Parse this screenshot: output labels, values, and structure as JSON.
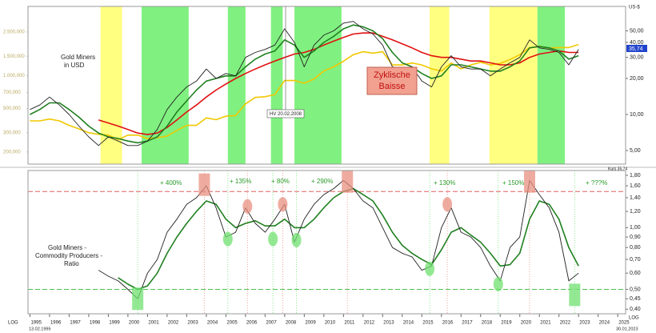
{
  "chart_data": [
    {
      "type": "line",
      "title_lines": [
        "Gold Miners",
        "in USD"
      ],
      "currency": "US-$",
      "callout_lines": [
        "Zyklische",
        "Baisse"
      ],
      "event_label": "HV 20.02.2008",
      "price_label": "Kurs 35,74",
      "price_tag": "35,74",
      "yscale": "log",
      "xlim": [
        1994.9,
        2025.4
      ],
      "ylim": [
        3.85,
        80
      ],
      "yticks": [
        {
          "value": 50,
          "label": "50,00"
        },
        {
          "value": 40,
          "label": "40,00"
        },
        {
          "value": 30,
          "label": "30,00"
        },
        {
          "value": 20,
          "label": "20,00"
        },
        {
          "value": 10,
          "label": "10,00"
        },
        {
          "value": 5,
          "label": "5,00"
        }
      ],
      "y2lim": [
        155,
        4280
      ],
      "y2ticks": [
        {
          "value": 2500,
          "label": "2.500,000"
        },
        {
          "value": 1500,
          "label": "1.500,000"
        },
        {
          "value": 1000,
          "label": "1.000,000"
        },
        {
          "value": 700,
          "label": "700,000"
        },
        {
          "value": 500,
          "label": "500,000"
        },
        {
          "value": 300,
          "label": "300,000"
        },
        {
          "value": 200,
          "label": "200,000"
        }
      ],
      "bands": [
        {
          "start": 1998.6,
          "end": 1999.7,
          "color": "#ffff80"
        },
        {
          "start": 2000.7,
          "end": 2003.1,
          "color": "#80f080"
        },
        {
          "start": 2005.1,
          "end": 2006.0,
          "color": "#80f080"
        },
        {
          "start": 2007.3,
          "end": 2007.9,
          "color": "#80f080"
        },
        {
          "start": 2008.5,
          "end": 2010.9,
          "color": "#80f080"
        },
        {
          "start": 2015.4,
          "end": 2016.4,
          "color": "#ffff80"
        },
        {
          "start": 2018.45,
          "end": 2020.9,
          "color": "#ffff80"
        },
        {
          "start": 2020.9,
          "end": 2022.3,
          "color": "#80f080"
        }
      ],
      "x": [
        1995,
        1995.5,
        1996,
        1996.5,
        1997,
        1997.5,
        1998,
        1998.5,
        1999,
        1999.5,
        2000,
        2000.5,
        2001,
        2001.5,
        2002,
        2002.5,
        2003,
        2003.5,
        2004,
        2004.5,
        2005,
        2005.5,
        2006,
        2006.5,
        2007,
        2007.5,
        2008,
        2008.5,
        2009,
        2009.5,
        2010,
        2010.5,
        2011,
        2011.5,
        2012,
        2012.5,
        2013,
        2013.5,
        2014,
        2014.5,
        2015,
        2015.5,
        2016,
        2016.5,
        2017,
        2017.5,
        2018,
        2018.5,
        2019,
        2019.5,
        2020,
        2020.5,
        2021,
        2021.5,
        2022,
        2022.5,
        2023
      ],
      "series": [
        {
          "color": "#f0c800",
          "axis": "y2",
          "values": [
            385,
            385,
            400,
            385,
            350,
            325,
            300,
            290,
            285,
            260,
            285,
            285,
            265,
            270,
            280,
            315,
            350,
            350,
            410,
            395,
            425,
            430,
            550,
            630,
            640,
            670,
            900,
            900,
            850,
            930,
            1100,
            1200,
            1350,
            1550,
            1650,
            1600,
            1650,
            1250,
            1250,
            1300,
            1250,
            1150,
            1100,
            1300,
            1150,
            1250,
            1320,
            1250,
            1290,
            1400,
            1550,
            1800,
            1850,
            1780,
            1800,
            1800,
            1920
          ]
        },
        {
          "color": "#e01010",
          "values": [
            null,
            null,
            null,
            null,
            null,
            null,
            null,
            9,
            8.5,
            8,
            7.5,
            7,
            6.8,
            7,
            7.8,
            9,
            10.5,
            12,
            14,
            16,
            18,
            20,
            22,
            24,
            26,
            28,
            30,
            32,
            33,
            35,
            38,
            41,
            44,
            47,
            48,
            48,
            45,
            42,
            39,
            36,
            33,
            31,
            30,
            30,
            29,
            28,
            28,
            27,
            26,
            26,
            27,
            30,
            32,
            33,
            34,
            33,
            33
          ]
        },
        {
          "color": "#208020",
          "values": [
            10,
            11,
            12.5,
            12.5,
            11,
            9.5,
            8,
            7,
            6.5,
            6.3,
            6,
            5.8,
            6,
            6.5,
            8,
            10.5,
            13,
            16,
            19,
            20,
            21,
            21,
            25,
            29,
            32,
            34,
            42,
            38,
            30,
            34,
            40,
            45,
            52,
            56,
            54,
            50,
            43,
            33,
            27,
            25,
            22,
            20,
            21,
            26,
            26,
            25,
            24,
            23,
            23,
            25,
            28,
            36,
            37,
            36,
            34,
            29,
            31
          ]
        },
        {
          "color": "#202020",
          "values": [
            11,
            12,
            14,
            12,
            10,
            8,
            6.5,
            5.5,
            6.5,
            6,
            5.5,
            5.5,
            6,
            7.5,
            11,
            14,
            17,
            19,
            24,
            20,
            22,
            21,
            30,
            33,
            35,
            38,
            52,
            40,
            25,
            38,
            46,
            50,
            58,
            60,
            52,
            47,
            38,
            25,
            24,
            25,
            19,
            17,
            25,
            31,
            25,
            24,
            24,
            21,
            24,
            27,
            30,
            42,
            36,
            35,
            33,
            26,
            35
          ]
        }
      ]
    },
    {
      "type": "line",
      "title_lines": [
        "Gold Miners -",
        "Commodity Producers -",
        "Ratio"
      ],
      "gains": [
        "+ 400%",
        "+ 135%",
        "+ 80%",
        "+ 290%",
        "+ 130%",
        "+ 150%",
        "+ ???%"
      ],
      "scale_note": "LOG",
      "start_date": "13.02.1995",
      "end_date": "30.01.2023",
      "yscale": "log",
      "xlim": [
        1994.9,
        2025.4
      ],
      "ylim": [
        0.38,
        1.9
      ],
      "yticks": [
        {
          "value": 1.8,
          "label": "1,80"
        },
        {
          "value": 1.6,
          "label": "1,60"
        },
        {
          "value": 1.4,
          "label": "1,40"
        },
        {
          "value": 1.2,
          "label": "1,20"
        },
        {
          "value": 1,
          "label": "1,00"
        },
        {
          "value": 0.9,
          "label": "0,90"
        },
        {
          "value": 0.8,
          "label": "0,80"
        },
        {
          "value": 0.7,
          "label": "0,70"
        },
        {
          "value": 0.6,
          "label": "0,60"
        },
        {
          "value": 0.5,
          "label": "0,50"
        },
        {
          "value": 0.45,
          "label": "0,45"
        },
        {
          "value": 0.4,
          "label": "0,40"
        }
      ],
      "xticks": [
        1995,
        1996,
        1997,
        1998,
        1999,
        2000,
        2001,
        2002,
        2003,
        2004,
        2005,
        2006,
        2007,
        2008,
        2009,
        2010,
        2011,
        2012,
        2013,
        2014,
        2015,
        2016,
        2017,
        2018,
        2019,
        2020,
        2021,
        2022,
        2023,
        2024,
        2025
      ],
      "hlines": [
        {
          "y": 1.5,
          "color": "#e06060"
        },
        {
          "y": 0.5,
          "color": "#50c050"
        }
      ],
      "markers": [
        {
          "x": 2000.5,
          "y": 0.45,
          "shape": "box",
          "color": "#70e070"
        },
        {
          "x": 2003.9,
          "y": 1.62,
          "shape": "box",
          "color": "#e89080"
        },
        {
          "x": 2005.1,
          "y": 0.88,
          "shape": "ellipse",
          "color": "#70e070"
        },
        {
          "x": 2006.1,
          "y": 1.27,
          "shape": "ellipse",
          "color": "#e89080"
        },
        {
          "x": 2007.4,
          "y": 0.88,
          "shape": "ellipse",
          "color": "#70e070"
        },
        {
          "x": 2007.9,
          "y": 1.3,
          "shape": "ellipse",
          "color": "#e89080"
        },
        {
          "x": 2008.6,
          "y": 0.87,
          "shape": "ellipse",
          "color": "#70e070"
        },
        {
          "x": 2011.2,
          "y": 1.68,
          "shape": "box",
          "color": "#e89080"
        },
        {
          "x": 2015.4,
          "y": 0.63,
          "shape": "ellipse",
          "color": "#70e070"
        },
        {
          "x": 2016.3,
          "y": 1.3,
          "shape": "ellipse",
          "color": "#e89080"
        },
        {
          "x": 2018.9,
          "y": 0.53,
          "shape": "ellipse",
          "color": "#70e070"
        },
        {
          "x": 2020.5,
          "y": 1.68,
          "shape": "box",
          "color": "#e89080"
        },
        {
          "x": 2022.8,
          "y": 0.47,
          "shape": "box",
          "color": "#70e070"
        }
      ],
      "x": [
        1995,
        1995.5,
        1996,
        1996.5,
        1997,
        1997.5,
        1998,
        1998.5,
        1999,
        1999.5,
        2000,
        2000.5,
        2001,
        2001.5,
        2002,
        2002.5,
        2003,
        2003.5,
        2004,
        2004.5,
        2005,
        2005.5,
        2006,
        2006.5,
        2007,
        2007.5,
        2008,
        2008.5,
        2009,
        2009.5,
        2010,
        2010.5,
        2011,
        2011.5,
        2012,
        2012.5,
        2013,
        2013.5,
        2014,
        2014.5,
        2015,
        2015.5,
        2016,
        2016.5,
        2017,
        2017.5,
        2018,
        2018.5,
        2019,
        2019.5,
        2020,
        2020.5,
        2021,
        2021.5,
        2022,
        2022.5,
        2023
      ],
      "series": [
        {
          "color": "#208020",
          "values": [
            null,
            null,
            null,
            null,
            null,
            null,
            null,
            null,
            null,
            0.57,
            0.53,
            0.5,
            0.52,
            0.6,
            0.75,
            0.9,
            1.05,
            1.2,
            1.35,
            1.3,
            1.1,
            1.0,
            1.05,
            1.08,
            1.02,
            1.02,
            1.1,
            1.0,
            1.0,
            1.1,
            1.25,
            1.4,
            1.5,
            1.55,
            1.45,
            1.35,
            1.15,
            0.95,
            0.82,
            0.75,
            0.7,
            0.66,
            0.78,
            0.95,
            1.0,
            0.92,
            0.85,
            0.75,
            0.65,
            0.66,
            0.75,
            1.1,
            1.35,
            1.3,
            1.1,
            0.8,
            0.65
          ]
        },
        {
          "color": "#202020",
          "values": [
            null,
            null,
            null,
            null,
            null,
            null,
            null,
            0.62,
            0.58,
            0.55,
            0.5,
            0.45,
            0.6,
            0.7,
            0.95,
            1.1,
            1.3,
            1.4,
            1.6,
            1.25,
            0.9,
            0.95,
            1.25,
            1.05,
            0.95,
            1.1,
            1.3,
            0.85,
            1.1,
            1.3,
            1.45,
            1.55,
            1.7,
            1.55,
            1.35,
            1.25,
            1.0,
            0.8,
            0.75,
            0.72,
            0.62,
            0.65,
            1.0,
            1.25,
            0.95,
            0.9,
            0.8,
            0.65,
            0.55,
            0.8,
            0.9,
            1.7,
            1.45,
            1.25,
            0.95,
            0.55,
            0.6
          ]
        }
      ]
    }
  ]
}
